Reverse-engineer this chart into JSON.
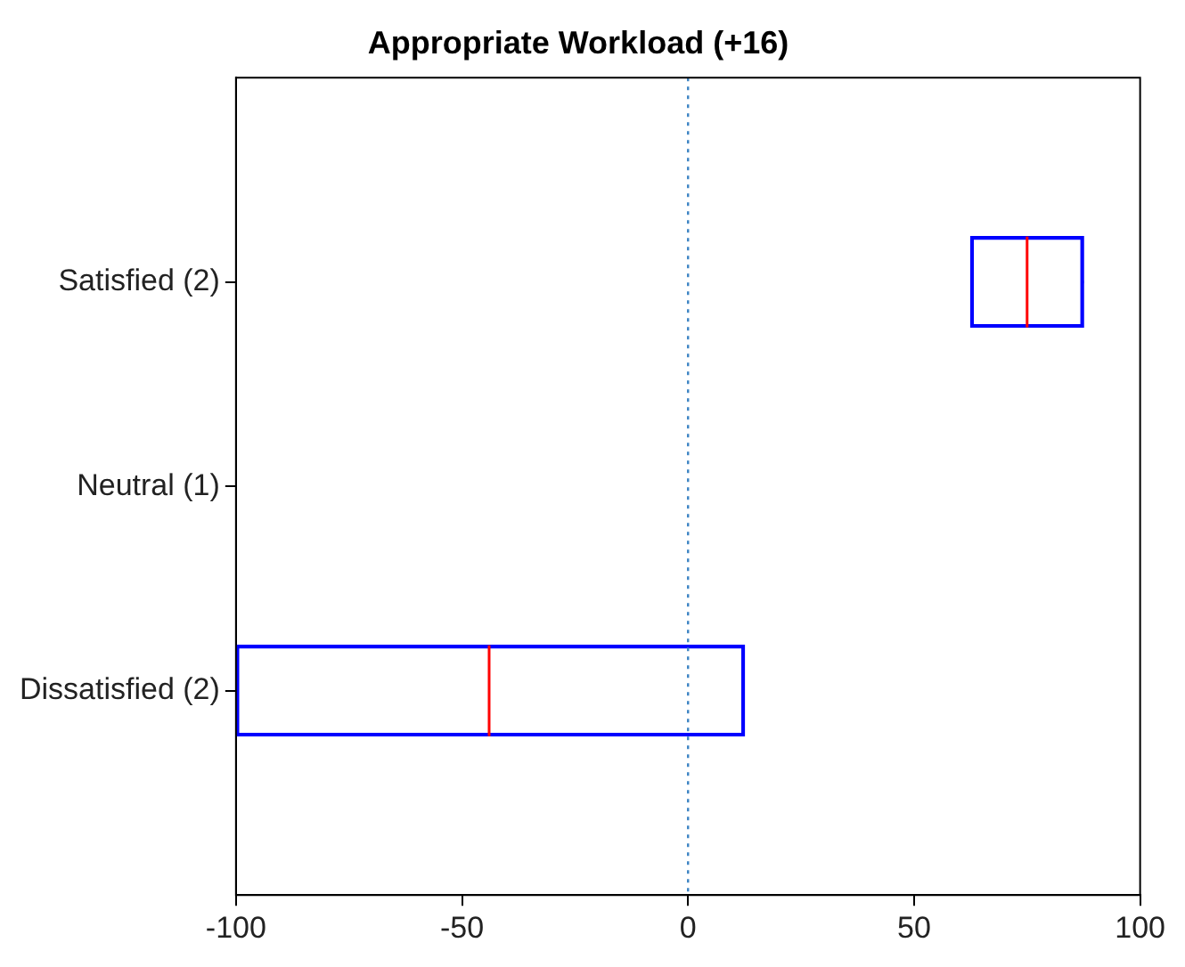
{
  "chart_data": {
    "type": "box",
    "orientation": "horizontal",
    "title": "Appropriate Workload (+16)",
    "categories": [
      "Satisfied (2)",
      "Neutral (1)",
      "Dissatisfied (2)"
    ],
    "series": [
      {
        "color": "#0000ff",
        "boxes": [
          {
            "low": 62.5,
            "q1": 62.5,
            "median": 75,
            "q3": 87.5,
            "high": 87.5
          },
          null,
          {
            "low": -100,
            "q1": -100,
            "median": -44,
            "q3": 12.5,
            "high": 12.5
          }
        ]
      }
    ],
    "xlim": [
      -100,
      100
    ],
    "xticks": [
      -100,
      -50,
      0,
      50,
      100
    ],
    "ref_lines": [
      {
        "axis": "x",
        "value": 0,
        "color": "#3c84c4",
        "line_style": "dotted"
      }
    ],
    "grid": false,
    "legend": false
  }
}
